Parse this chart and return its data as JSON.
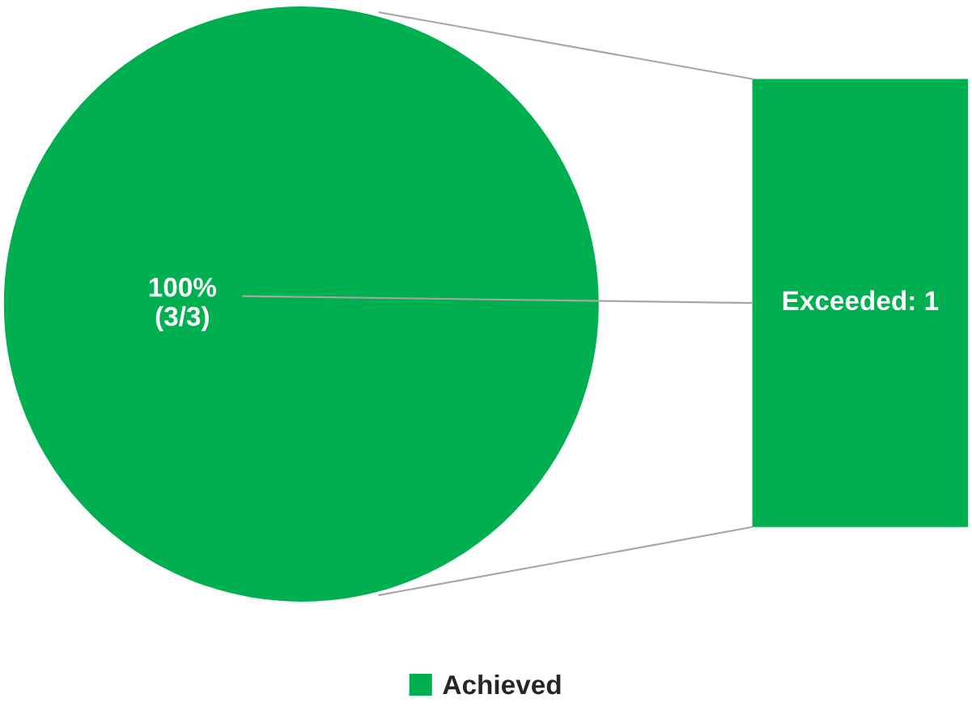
{
  "chart_data": [
    {
      "type": "pie",
      "categories": [
        "Achieved"
      ],
      "values": [
        100
      ],
      "colors": [
        "#00b050"
      ],
      "value_labels": [
        "100%\n(3/3)"
      ],
      "legend": "bottom"
    },
    {
      "type": "other",
      "color": "#00b050",
      "annotations": [
        "Exceeded: 1"
      ]
    }
  ]
}
